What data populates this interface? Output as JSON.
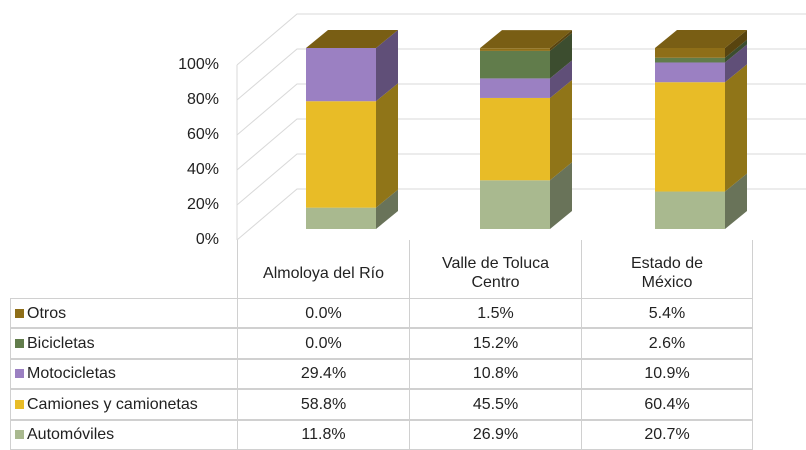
{
  "chart_data": {
    "type": "stacked_bar_3d",
    "categories": [
      "Almoloya del Río",
      "Valle de Toluca\nCentro",
      "Estado de\nMéxico"
    ],
    "series": [
      {
        "name": "Automóviles",
        "color": "#a9b98f",
        "values": [
          11.8,
          26.9,
          20.7
        ],
        "value_labels": [
          "11.8%",
          "26.9%",
          "20.7%"
        ]
      },
      {
        "name": "Camiones y camionetas",
        "color": "#e8bc27",
        "values": [
          58.8,
          45.5,
          60.4
        ],
        "value_labels": [
          "58.8%",
          "45.5%",
          "60.4%"
        ]
      },
      {
        "name": "Motocicletas",
        "color": "#9b80c2",
        "values": [
          29.4,
          10.8,
          10.9
        ],
        "value_labels": [
          "29.4%",
          "10.8%",
          "10.9%"
        ]
      },
      {
        "name": "Bicicletas",
        "color": "#617c4b",
        "values": [
          0,
          15.2,
          2.6
        ],
        "value_labels": [
          "0.0%",
          "15.2%",
          "2.6%"
        ]
      },
      {
        "name": "Otros",
        "color": "#8e6e18",
        "values": [
          0,
          1.5,
          5.4
        ],
        "value_labels": [
          "0.0%",
          "1.5%",
          "5.4%"
        ]
      }
    ],
    "ylim": [
      0,
      100
    ],
    "yticks": [
      {
        "value": 0,
        "label": "0%"
      },
      {
        "value": 20,
        "label": "20%"
      },
      {
        "value": 40,
        "label": "40%"
      },
      {
        "value": 60,
        "label": "60%"
      },
      {
        "value": 80,
        "label": "80%"
      },
      {
        "value": 100,
        "label": "100%"
      }
    ],
    "grid": true
  }
}
